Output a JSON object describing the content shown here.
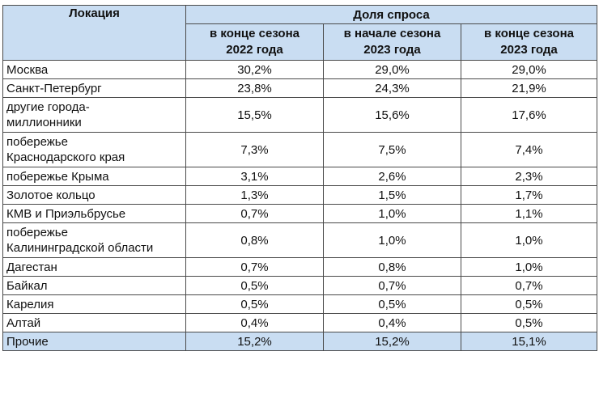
{
  "header": {
    "location": "Локация",
    "demand_share": "Доля спроса",
    "periods": [
      {
        "line1": "в конце сезона",
        "line2": "2022 года"
      },
      {
        "line1": "в начале сезона",
        "line2": "2023 года"
      },
      {
        "line1": "в конце сезона",
        "line2": "2023 года"
      }
    ]
  },
  "rows": [
    {
      "location": [
        "Москва"
      ],
      "values": [
        "30,2%",
        "29,0%",
        "29,0%"
      ]
    },
    {
      "location": [
        "Санкт-Петербург"
      ],
      "values": [
        "23,8%",
        "24,3%",
        "21,9%"
      ]
    },
    {
      "location": [
        "другие города-",
        "миллионники"
      ],
      "values": [
        "15,5%",
        "15,6%",
        "17,6%"
      ]
    },
    {
      "location": [
        "побережье",
        "Краснодарского края"
      ],
      "values": [
        "7,3%",
        "7,5%",
        "7,4%"
      ]
    },
    {
      "location": [
        "побережье Крыма"
      ],
      "values": [
        "3,1%",
        "2,6%",
        "2,3%"
      ]
    },
    {
      "location": [
        "Золотое кольцо"
      ],
      "values": [
        "1,3%",
        "1,5%",
        "1,7%"
      ]
    },
    {
      "location": [
        "КМВ и Приэльбрусье"
      ],
      "values": [
        "0,7%",
        "1,0%",
        "1,1%"
      ]
    },
    {
      "location": [
        "побережье",
        "Калининградской области"
      ],
      "values": [
        "0,8%",
        "1,0%",
        "1,0%"
      ]
    },
    {
      "location": [
        "Дагестан"
      ],
      "values": [
        "0,7%",
        "0,8%",
        "1,0%"
      ]
    },
    {
      "location": [
        "Байкал"
      ],
      "values": [
        "0,5%",
        "0,7%",
        "0,7%"
      ]
    },
    {
      "location": [
        "Карелия"
      ],
      "values": [
        "0,5%",
        "0,5%",
        "0,5%"
      ]
    },
    {
      "location": [
        "Алтай"
      ],
      "values": [
        "0,4%",
        "0,4%",
        "0,5%"
      ]
    }
  ],
  "total": {
    "location": "Прочие",
    "values": [
      "15,2%",
      "15,2%",
      "15,1%"
    ]
  },
  "colors": {
    "header_bg": "#c9ddf2",
    "border": "#4a4a4a"
  }
}
